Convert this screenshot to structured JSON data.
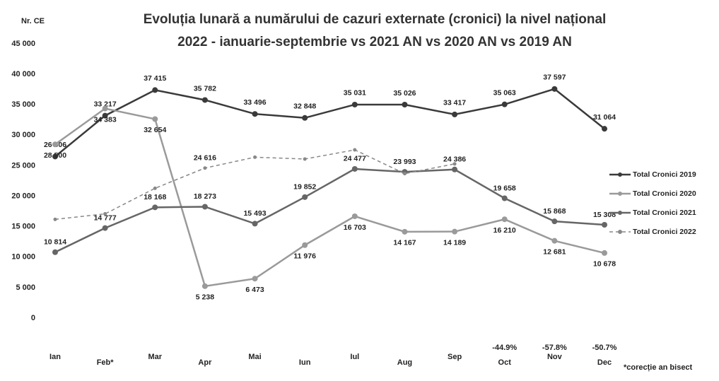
{
  "chart_data": {
    "type": "line",
    "title": "Evoluția lunară a numărului de cazuri externate (cronici) la nivel național",
    "subtitle": "2022 - ianuarie-septembrie vs 2021 AN vs 2020 AN vs 2019 AN",
    "y_axis_label": "Nr. CE",
    "categories": [
      "Ian",
      "Feb*",
      "Mar",
      "Apr",
      "Mai",
      "Iun",
      "Iul",
      "Aug",
      "Sep",
      "Oct",
      "Nov",
      "Dec"
    ],
    "ylim": [
      0,
      45000
    ],
    "yticks": [
      0,
      {
        "value": 5000,
        "label": "5 000"
      },
      {
        "value": 10000,
        "label": "10 000"
      },
      {
        "value": 15000,
        "label": "15 000"
      },
      {
        "value": 20000,
        "label": "20 000"
      },
      {
        "value": 25000,
        "label": "25 000"
      },
      {
        "value": 30000,
        "label": "30 000"
      },
      {
        "value": 35000,
        "label": "35 000"
      },
      {
        "value": 40000,
        "label": "40 000"
      },
      {
        "value": 45000,
        "label": "45 000"
      }
    ],
    "grid": false,
    "legend": "right",
    "series": [
      {
        "name": "Total Cronici 2019",
        "color": "#3a3a3a",
        "dashed": false,
        "values": [
          26506,
          33217,
          37415,
          35782,
          33496,
          32848,
          35031,
          35026,
          33417,
          35063,
          37597,
          31064
        ],
        "value_labels": [
          "26 506",
          "33 217",
          "37 415",
          "35 782",
          "33 496",
          "32 848",
          "35 031",
          "35 026",
          "33 417",
          "35 063",
          "37 597",
          "31 064"
        ]
      },
      {
        "name": "Total Cronici 2020",
        "color": "#9a9a9a",
        "dashed": false,
        "values": [
          28500,
          34383,
          32654,
          5238,
          6473,
          11976,
          16703,
          14167,
          14189,
          16210,
          12681,
          10678
        ],
        "value_labels": [
          "28 500",
          "34 383",
          "32 654",
          "5 238",
          "6 473",
          "11 976",
          "16 703",
          "14 167",
          "14 189",
          "16 210",
          "12 681",
          "10 678"
        ]
      },
      {
        "name": "Total Cronici 2021",
        "color": "#666666",
        "dashed": false,
        "values": [
          10814,
          14777,
          18168,
          18273,
          15493,
          19852,
          24477,
          23993,
          24386,
          19658,
          15868,
          15308
        ],
        "value_labels": [
          "10 814",
          "14 777",
          "18 168",
          "18 273",
          "15 493",
          "19 852",
          "24 477",
          "23 993",
          "24 386",
          "19 658",
          "15 868",
          "15 308"
        ]
      },
      {
        "name": "Total Cronici 2022",
        "color": "#888888",
        "dashed": true,
        "values": [
          16200,
          17100,
          21300,
          24616,
          26400,
          26100,
          27600,
          23700,
          25300,
          null,
          null,
          null
        ],
        "value_labels": [
          null,
          null,
          null,
          "24 616",
          null,
          null,
          null,
          null,
          null,
          null,
          null,
          null
        ]
      }
    ],
    "annotations": [
      {
        "category": "Oct",
        "text": "-44.9%"
      },
      {
        "category": "Nov",
        "text": "-57.8%"
      },
      {
        "category": "Dec",
        "text": "-50.7%"
      }
    ],
    "footnote": "*corecție an bisect"
  }
}
